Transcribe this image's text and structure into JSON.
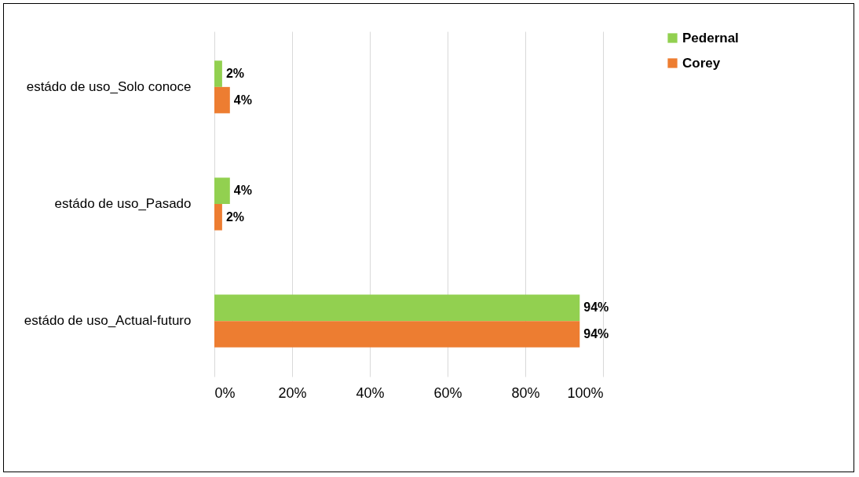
{
  "chart_data": {
    "type": "bar",
    "orientation": "horizontal",
    "categories": [
      "estádo de uso_Solo conoce",
      "estádo de uso_Pasado",
      "estádo de uso_Actual-futuro"
    ],
    "series": [
      {
        "name": "Pedernal",
        "color": "#92d050",
        "values": [
          2,
          4,
          94
        ],
        "value_labels": [
          "2%",
          "4%",
          "94%"
        ]
      },
      {
        "name": "Corey",
        "color": "#ed7d31",
        "values": [
          4,
          2,
          94
        ],
        "value_labels": [
          "4%",
          "2%",
          "94%"
        ]
      }
    ],
    "xlim": [
      0,
      100
    ],
    "xticks": [
      {
        "value": 0,
        "label": "0%"
      },
      {
        "value": 20,
        "label": "20%"
      },
      {
        "value": 40,
        "label": "40%"
      },
      {
        "value": 60,
        "label": "60%"
      },
      {
        "value": 80,
        "label": "80%"
      },
      {
        "value": 100,
        "label": "100%"
      }
    ],
    "grid": "x",
    "legend": "right"
  }
}
